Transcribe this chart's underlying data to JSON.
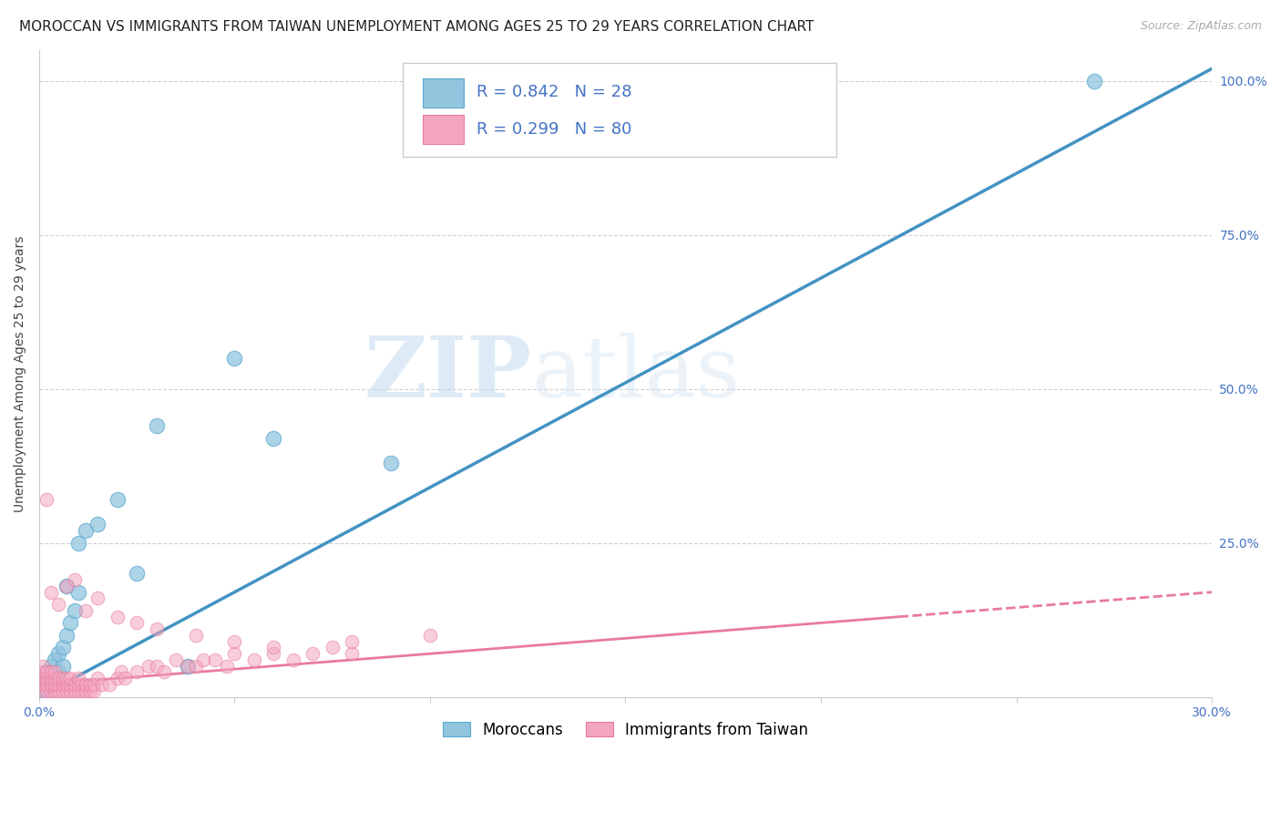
{
  "title": "MOROCCAN VS IMMIGRANTS FROM TAIWAN UNEMPLOYMENT AMONG AGES 25 TO 29 YEARS CORRELATION CHART",
  "source": "Source: ZipAtlas.com",
  "ylabel": "Unemployment Among Ages 25 to 29 years",
  "xlim": [
    0.0,
    0.3
  ],
  "ylim": [
    0.0,
    1.05
  ],
  "moroccan_color": "#92c5de",
  "taiwan_color": "#f4a6c0",
  "moroccan_line_color": "#4393c3",
  "taiwan_line_color": "#d6604d",
  "moroccan_R": 0.842,
  "moroccan_N": 28,
  "taiwan_R": 0.299,
  "taiwan_N": 80,
  "legend_label_moroccan": "Moroccans",
  "legend_label_taiwan": "Immigrants from Taiwan",
  "watermark_zip": "ZIP",
  "watermark_atlas": "atlas",
  "background_color": "#ffffff",
  "grid_color": "#d0d0d0",
  "moroccan_x": [
    0.001,
    0.001,
    0.002,
    0.002,
    0.003,
    0.003,
    0.004,
    0.004,
    0.005,
    0.005,
    0.006,
    0.006,
    0.007,
    0.007,
    0.008,
    0.009,
    0.01,
    0.01,
    0.012,
    0.015,
    0.02,
    0.025,
    0.03,
    0.038,
    0.05,
    0.06,
    0.09,
    0.27
  ],
  "moroccan_y": [
    0.01,
    0.02,
    0.03,
    0.04,
    0.02,
    0.05,
    0.03,
    0.06,
    0.04,
    0.07,
    0.05,
    0.08,
    0.1,
    0.18,
    0.12,
    0.14,
    0.17,
    0.25,
    0.27,
    0.28,
    0.32,
    0.2,
    0.44,
    0.05,
    0.55,
    0.42,
    0.38,
    1.0
  ],
  "taiwan_x": [
    0.001,
    0.001,
    0.001,
    0.001,
    0.001,
    0.002,
    0.002,
    0.002,
    0.002,
    0.003,
    0.003,
    0.003,
    0.003,
    0.004,
    0.004,
    0.004,
    0.004,
    0.005,
    0.005,
    0.005,
    0.006,
    0.006,
    0.006,
    0.007,
    0.007,
    0.007,
    0.008,
    0.008,
    0.008,
    0.009,
    0.009,
    0.01,
    0.01,
    0.01,
    0.011,
    0.011,
    0.012,
    0.012,
    0.013,
    0.013,
    0.014,
    0.014,
    0.015,
    0.016,
    0.018,
    0.02,
    0.021,
    0.022,
    0.025,
    0.028,
    0.03,
    0.032,
    0.035,
    0.038,
    0.04,
    0.042,
    0.045,
    0.048,
    0.05,
    0.055,
    0.06,
    0.065,
    0.07,
    0.075,
    0.08,
    0.002,
    0.003,
    0.005,
    0.007,
    0.009,
    0.012,
    0.015,
    0.02,
    0.025,
    0.03,
    0.04,
    0.05,
    0.06,
    0.08,
    0.1
  ],
  "taiwan_y": [
    0.01,
    0.02,
    0.03,
    0.04,
    0.05,
    0.01,
    0.02,
    0.03,
    0.04,
    0.01,
    0.02,
    0.03,
    0.04,
    0.01,
    0.02,
    0.03,
    0.04,
    0.01,
    0.02,
    0.03,
    0.01,
    0.02,
    0.03,
    0.01,
    0.02,
    0.03,
    0.01,
    0.02,
    0.03,
    0.01,
    0.02,
    0.01,
    0.02,
    0.03,
    0.01,
    0.02,
    0.01,
    0.02,
    0.01,
    0.02,
    0.01,
    0.02,
    0.03,
    0.02,
    0.02,
    0.03,
    0.04,
    0.03,
    0.04,
    0.05,
    0.05,
    0.04,
    0.06,
    0.05,
    0.05,
    0.06,
    0.06,
    0.05,
    0.07,
    0.06,
    0.07,
    0.06,
    0.07,
    0.08,
    0.07,
    0.32,
    0.17,
    0.15,
    0.18,
    0.19,
    0.14,
    0.16,
    0.13,
    0.12,
    0.11,
    0.1,
    0.09,
    0.08,
    0.09,
    0.1
  ],
  "title_fontsize": 11,
  "axis_label_fontsize": 10,
  "tick_fontsize": 10,
  "legend_fontsize": 12
}
